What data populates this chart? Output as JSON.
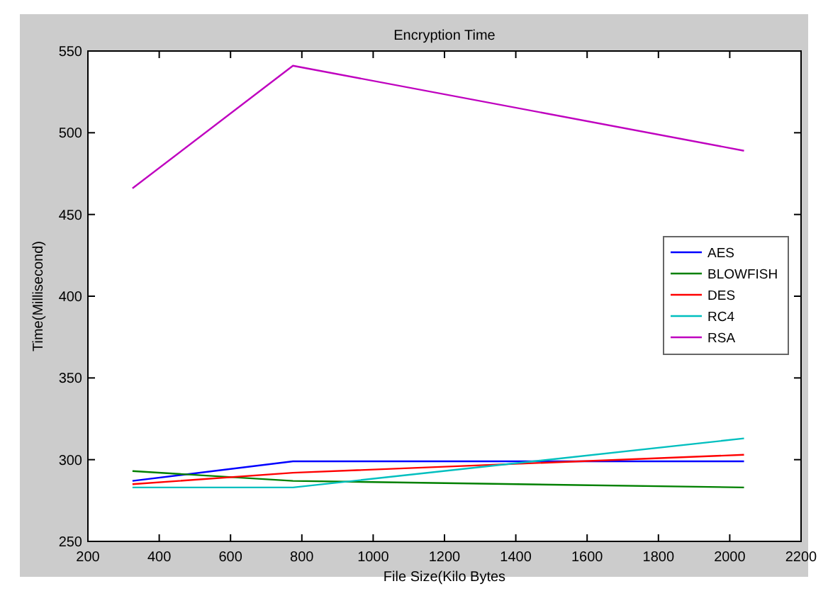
{
  "chart_data": {
    "type": "line",
    "title": "Encryption Time",
    "xlabel": "File Size(Kilo Bytes",
    "ylabel": "Time(Millisecond)",
    "x": [
      325,
      775,
      2040
    ],
    "series": [
      {
        "name": "AES",
        "color": "#0000ff",
        "values": [
          287,
          299,
          299
        ]
      },
      {
        "name": "BLOWFISH",
        "color": "#008000",
        "values": [
          293,
          287,
          283
        ]
      },
      {
        "name": "DES",
        "color": "#ff0000",
        "values": [
          285,
          292,
          303
        ]
      },
      {
        "name": "RC4",
        "color": "#00bfbf",
        "values": [
          283,
          283,
          313
        ]
      },
      {
        "name": "RSA",
        "color": "#bf00bf",
        "values": [
          466,
          541,
          489
        ]
      }
    ],
    "xlim": [
      200,
      2200
    ],
    "xticks": [
      200,
      400,
      600,
      800,
      1000,
      1200,
      1400,
      1600,
      1800,
      2000,
      2200
    ],
    "ylim": [
      250,
      550
    ],
    "yticks": [
      250,
      300,
      350,
      400,
      450,
      500,
      550
    ],
    "grid": false,
    "legend": "right",
    "marker": "none",
    "line_style": "solid"
  }
}
